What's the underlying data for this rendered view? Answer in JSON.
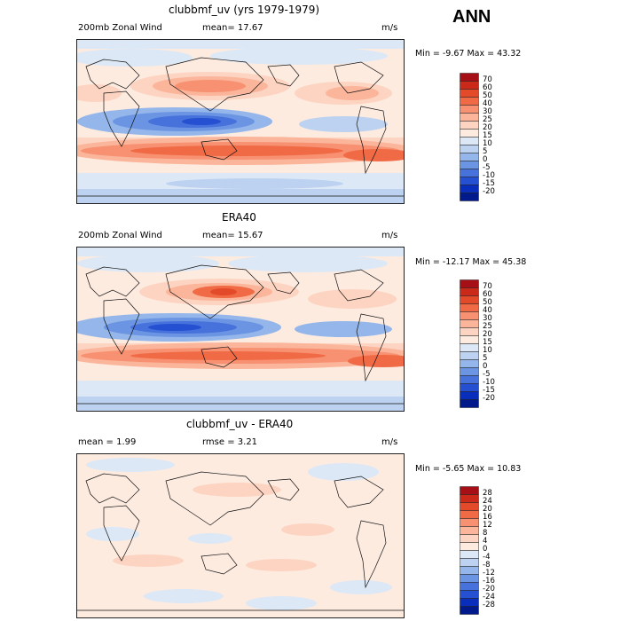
{
  "season": "ANN",
  "panels": [
    {
      "title": "clubbmf_uv (yrs 1979-1979)",
      "left_text": "200mb Zonal Wind",
      "mid_text": "mean=  17.67",
      "units": "m/s",
      "minmax": "Min =  -9.67 Max =  43.32",
      "levels": [
        "70",
        "60",
        "50",
        "40",
        "30",
        "25",
        "20",
        "15",
        "10",
        "5",
        "0",
        "-5",
        "-10",
        "-15",
        "-20"
      ],
      "colors": [
        "#a50f15",
        "#cb2a1a",
        "#e34a2a",
        "#f06b45",
        "#f79172",
        "#fbb59b",
        "#fdd4c1",
        "#fdebe0",
        "#dde8f6",
        "#bcd2f0",
        "#94b6ea",
        "#6b95e2",
        "#4772dc",
        "#2450d1",
        "#0a2ebc",
        "#001a8c"
      ]
    },
    {
      "title": "ERA40",
      "left_text": "200mb Zonal Wind",
      "mid_text": "mean=  15.67",
      "units": "m/s",
      "minmax": "Min = -12.17 Max =  45.38",
      "levels": [
        "70",
        "60",
        "50",
        "40",
        "30",
        "25",
        "20",
        "15",
        "10",
        "5",
        "0",
        "-5",
        "-10",
        "-15",
        "-20"
      ],
      "colors": [
        "#a50f15",
        "#cb2a1a",
        "#e34a2a",
        "#f06b45",
        "#f79172",
        "#fbb59b",
        "#fdd4c1",
        "#fdebe0",
        "#dde8f6",
        "#bcd2f0",
        "#94b6ea",
        "#6b95e2",
        "#4772dc",
        "#2450d1",
        "#0a2ebc",
        "#001a8c"
      ]
    },
    {
      "title": "clubbmf_uv - ERA40",
      "left_text": "mean =   1.99",
      "mid_text": "rmse =   3.21",
      "units": "m/s",
      "minmax": "Min =  -5.65 Max =  10.83",
      "levels": [
        "28",
        "24",
        "20",
        "16",
        "12",
        "8",
        "4",
        "0",
        "-4",
        "-8",
        "-12",
        "-16",
        "-20",
        "-24",
        "-28"
      ],
      "colors": [
        "#a50f15",
        "#cb2a1a",
        "#e34a2a",
        "#f06b45",
        "#f79172",
        "#fbb59b",
        "#fdd4c1",
        "#fdebe0",
        "#dde8f6",
        "#bcd2f0",
        "#94b6ea",
        "#6b95e2",
        "#4772dc",
        "#2450d1",
        "#0a2ebc",
        "#001a8c"
      ]
    }
  ]
}
